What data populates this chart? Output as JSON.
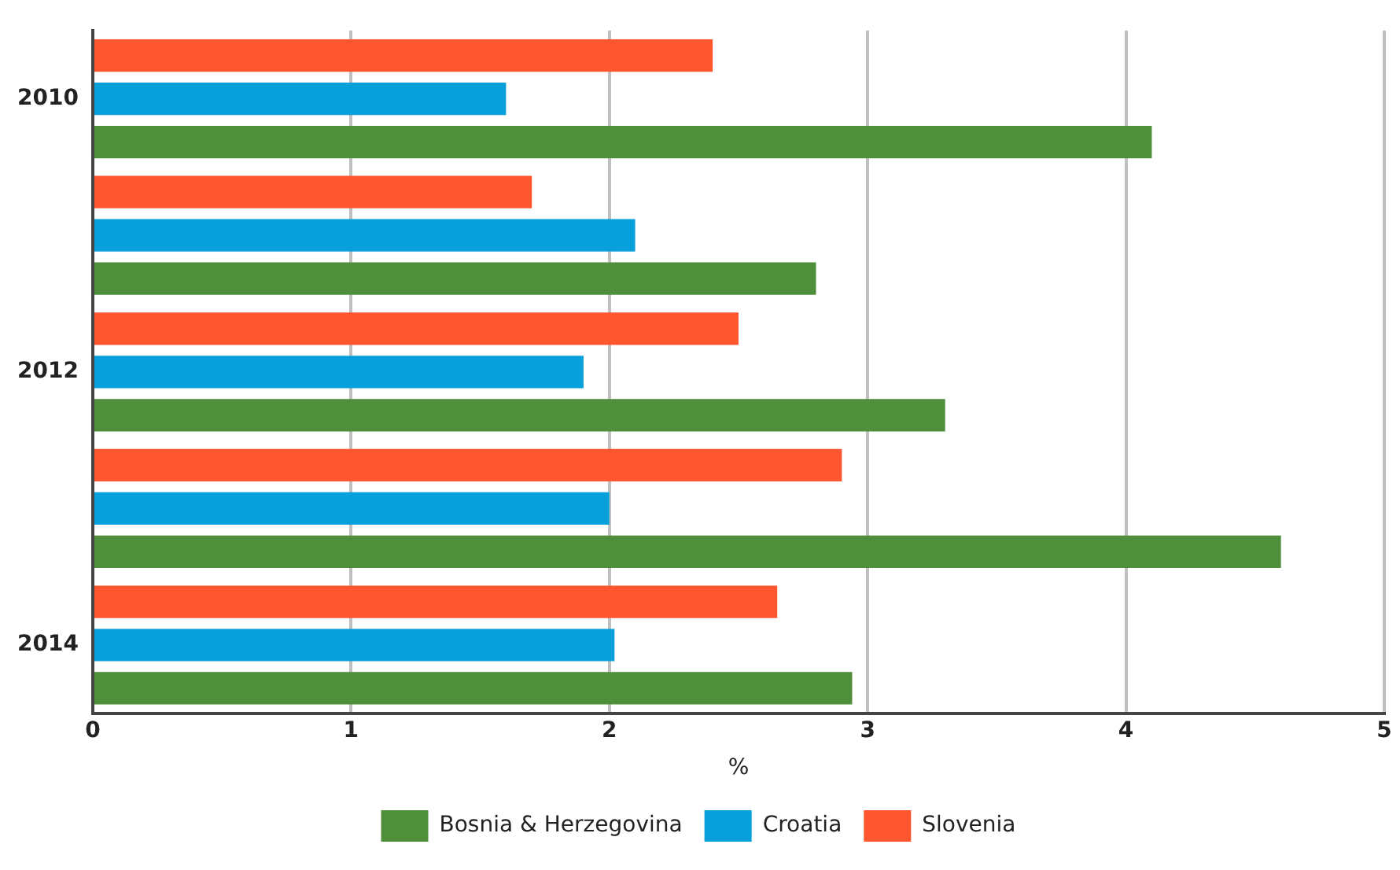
{
  "chart_data": {
    "type": "bar",
    "orientation": "horizontal",
    "xlabel": "%",
    "categories": [
      "2010",
      null,
      "2012",
      null,
      "2014"
    ],
    "series": [
      {
        "name": "Bosnia & Herzegovina",
        "color": "#4f8f3c",
        "values": [
          4.1,
          2.8,
          3.3,
          4.6,
          2.94
        ]
      },
      {
        "name": "Croatia",
        "color": "#07a0da",
        "values": [
          1.6,
          2.1,
          1.9,
          2.0,
          2.02
        ]
      },
      {
        "name": "Slovenia",
        "color": "#ff5630",
        "values": [
          2.4,
          1.7,
          2.5,
          2.9,
          2.65
        ]
      }
    ],
    "xlim": [
      0,
      5
    ],
    "xticks": [
      0,
      1,
      2,
      3,
      4,
      5
    ],
    "grid": "x",
    "legend": "bottom"
  }
}
